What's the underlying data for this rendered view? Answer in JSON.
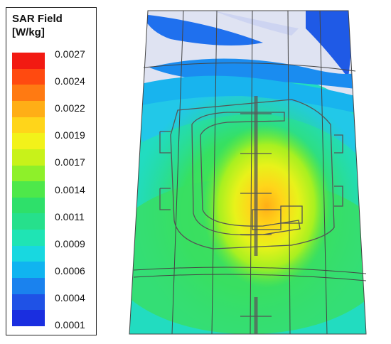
{
  "legend": {
    "title_line1": "SAR Field",
    "title_line2": "[W/kg]",
    "ticks": [
      "0.0027",
      "0.0024",
      "0.0022",
      "0.0019",
      "0.0017",
      "0.0014",
      "0.0011",
      "0.0009",
      "0.0006",
      "0.0004",
      "0.0001"
    ],
    "swatch_colors": [
      "#f21a12",
      "#ff4a10",
      "#ff7a12",
      "#ffae16",
      "#ffd51a",
      "#f2f21a",
      "#c8f21a",
      "#8ef02a",
      "#4ee84a",
      "#2ee06a",
      "#26e08c",
      "#1fe4b4",
      "#18d8e0",
      "#10b4f0",
      "#1a82ee",
      "#1f52e6",
      "#1a2ee0"
    ]
  },
  "colors": {
    "frame_outline": "#444444",
    "background": "#ffffff"
  }
}
